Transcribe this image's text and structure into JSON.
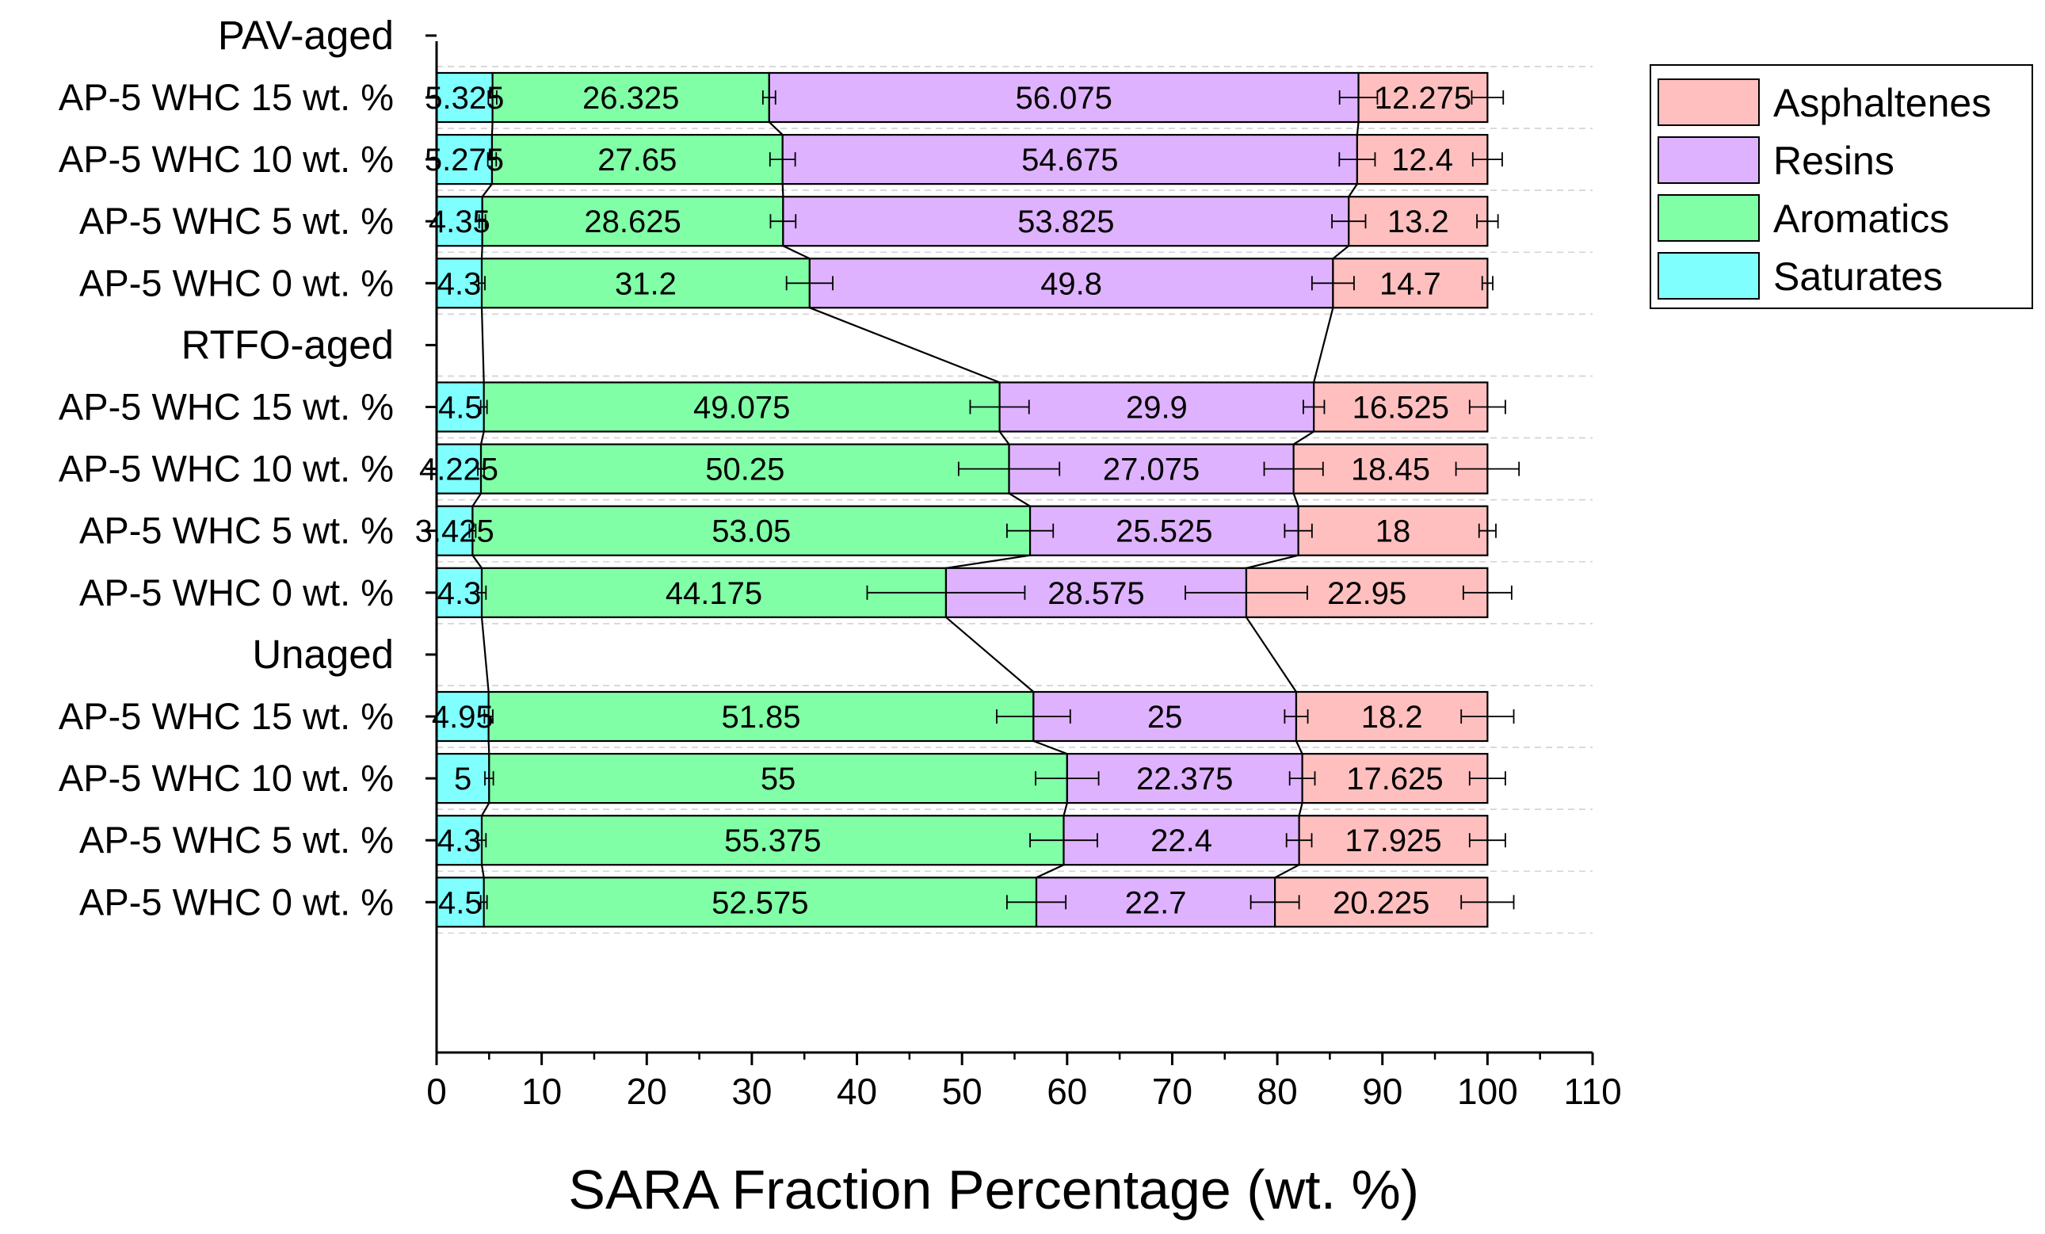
{
  "chart_data": {
    "type": "bar",
    "orientation": "horizontal",
    "stacked": true,
    "xlabel": "SARA Fraction Percentage (wt. %)",
    "ylabel": "",
    "xlim": [
      0,
      110
    ],
    "xticks": [
      0,
      10,
      20,
      30,
      40,
      50,
      60,
      70,
      80,
      90,
      100,
      110
    ],
    "grid": "horizontal dashed",
    "legend_position": "right",
    "series_names": [
      "Saturates",
      "Aromatics",
      "Resins",
      "Asphaltenes"
    ],
    "series_colors": [
      "#80FFFF",
      "#80FFA6",
      "#DFB2FF",
      "#FFBFBF"
    ],
    "legend_order": [
      "Asphaltenes",
      "Resins",
      "Aromatics",
      "Saturates"
    ],
    "groups": [
      {
        "label": "PAV-aged",
        "bars": [
          {
            "label": "AP-5 WHC 15 wt. %",
            "values": [
              5.325,
              26.325,
              56.075,
              12.275
            ],
            "labels": [
              "5.325",
              "26.325",
              "56.075",
              "12.275"
            ],
            "errors": [
              0.4,
              0.6,
              1.8,
              1.5
            ]
          },
          {
            "label": "AP-5 WHC 10 wt. %",
            "values": [
              5.275,
              27.65,
              54.675,
              12.4
            ],
            "labels": [
              "5.275",
              "27.65",
              "54.675",
              "12.4"
            ],
            "errors": [
              0.4,
              1.2,
              1.7,
              1.4
            ]
          },
          {
            "label": "AP-5 WHC 5 wt. %",
            "values": [
              4.35,
              28.625,
              53.825,
              13.2
            ],
            "labels": [
              "4.35",
              "28.625",
              "53.825",
              "13.2"
            ],
            "errors": [
              0.3,
              1.2,
              1.6,
              1.0
            ]
          },
          {
            "label": "AP-5 WHC 0 wt. %",
            "values": [
              4.3,
              31.2,
              49.8,
              14.7
            ],
            "labels": [
              "4.3",
              "31.2",
              "49.8",
              "14.7"
            ],
            "errors": [
              0.3,
              2.2,
              2.0,
              0.5
            ]
          }
        ]
      },
      {
        "label": "RTFO-aged",
        "bars": [
          {
            "label": "AP-5 WHC 15 wt. %",
            "values": [
              4.5,
              49.075,
              29.9,
              16.525
            ],
            "labels": [
              "4.5",
              "49.075",
              "29.9",
              "16.525"
            ],
            "errors": [
              0.3,
              2.8,
              1.0,
              1.7
            ]
          },
          {
            "label": "AP-5 WHC 10 wt. %",
            "values": [
              4.225,
              50.25,
              27.075,
              18.45
            ],
            "labels": [
              "4.225",
              "50.25",
              "27.075",
              "18.45"
            ],
            "errors": [
              0.3,
              4.8,
              2.8,
              3.0
            ]
          },
          {
            "label": "AP-5 WHC 5 wt. %",
            "values": [
              3.425,
              53.05,
              25.525,
              18
            ],
            "labels": [
              "3.425",
              "53.05",
              "25.525",
              "18"
            ],
            "errors": [
              0.3,
              2.2,
              1.3,
              0.8
            ]
          },
          {
            "label": "AP-5 WHC 0 wt. %",
            "values": [
              4.3,
              44.175,
              28.575,
              22.95
            ],
            "labels": [
              "4.3",
              "44.175",
              "28.575",
              "22.95"
            ],
            "errors": [
              0.4,
              7.5,
              5.8,
              2.3
            ]
          }
        ]
      },
      {
        "label": "Unaged",
        "bars": [
          {
            "label": "AP-5 WHC 15 wt. %",
            "values": [
              4.95,
              51.85,
              25,
              18.2
            ],
            "labels": [
              "4.95",
              "51.85",
              "25",
              "18.2"
            ],
            "errors": [
              0.4,
              3.5,
              1.1,
              2.5
            ]
          },
          {
            "label": "AP-5 WHC 10 wt. %",
            "values": [
              5,
              55,
              22.375,
              17.625
            ],
            "labels": [
              "5",
              "55",
              "22.375",
              "17.625"
            ],
            "errors": [
              0.4,
              3.0,
              1.2,
              1.7
            ]
          },
          {
            "label": "AP-5 WHC 5 wt. %",
            "values": [
              4.3,
              55.375,
              22.4,
              17.925
            ],
            "labels": [
              "4.3",
              "55.375",
              "22.4",
              "17.925"
            ],
            "errors": [
              0.4,
              3.2,
              1.2,
              1.7
            ]
          },
          {
            "label": "AP-5 WHC 0 wt. %",
            "values": [
              4.5,
              52.575,
              22.7,
              20.225
            ],
            "labels": [
              "4.5",
              "52.575",
              "22.7",
              "20.225"
            ],
            "errors": [
              0.3,
              2.8,
              2.3,
              2.5
            ]
          }
        ]
      }
    ]
  }
}
